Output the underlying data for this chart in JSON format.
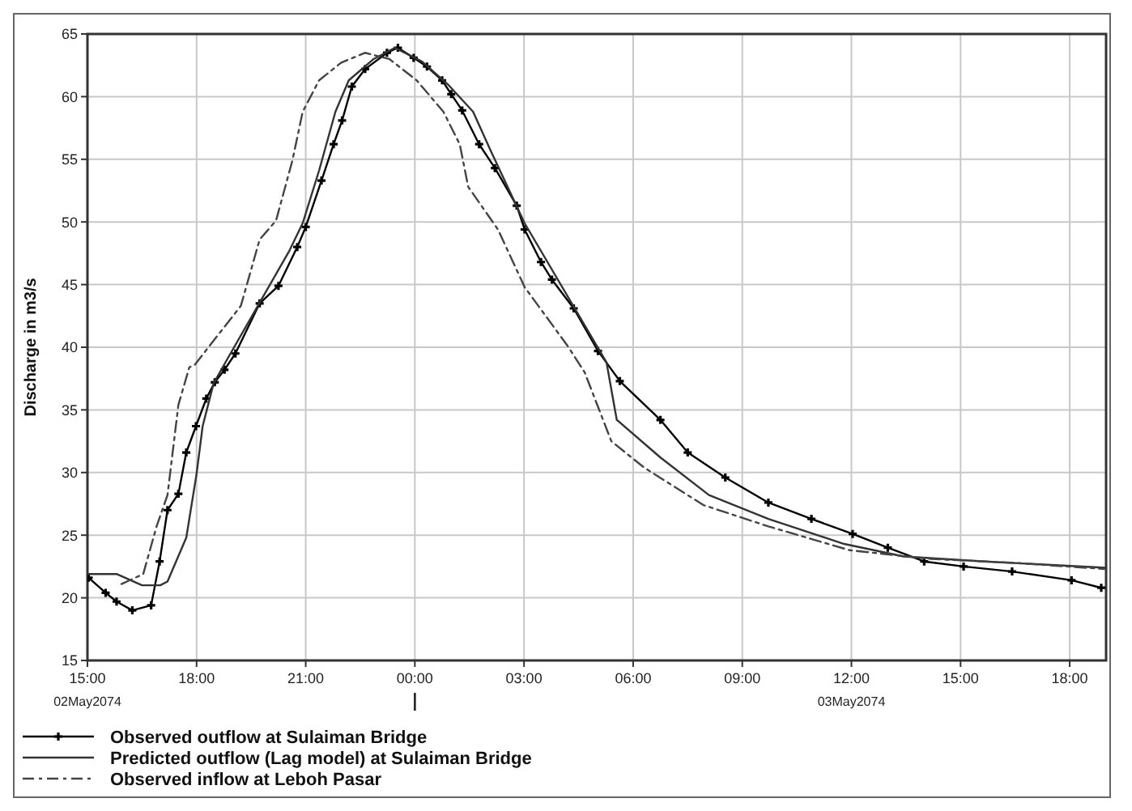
{
  "chart_data": {
    "type": "line",
    "ylabel": "Discharge in m3/s",
    "xlim": [
      "2074-05-02T15:00",
      "2074-05-03T19:00"
    ],
    "ylim": [
      15,
      65
    ],
    "xticks": [
      {
        "value": "2074-05-02T15:00",
        "label": "15:00"
      },
      {
        "value": "2074-05-02T18:00",
        "label": "18:00"
      },
      {
        "value": "2074-05-02T21:00",
        "label": "21:00"
      },
      {
        "value": "2074-05-03T00:00",
        "label": "00:00"
      },
      {
        "value": "2074-05-03T03:00",
        "label": "03:00"
      },
      {
        "value": "2074-05-03T06:00",
        "label": "06:00"
      },
      {
        "value": "2074-05-03T09:00",
        "label": "09:00"
      },
      {
        "value": "2074-05-03T12:00",
        "label": "12:00"
      },
      {
        "value": "2074-05-03T15:00",
        "label": "15:00"
      },
      {
        "value": "2074-05-03T18:00",
        "label": "18:00"
      }
    ],
    "yticks": [
      15,
      20,
      25,
      30,
      35,
      40,
      45,
      50,
      55,
      60,
      65
    ],
    "grid": true,
    "legend": "bottom left",
    "annotations": [
      "02May2074",
      "03May2074"
    ],
    "series": [
      {
        "name": "Observed outflow at Sulaiman Bridge",
        "color": "#000000",
        "marker": "cross",
        "line_style": "solid",
        "x": [
          "2074-05-02T15:02",
          "2074-05-02T15:30",
          "2074-05-02T15:48",
          "2074-05-02T16:14",
          "2074-05-02T16:45",
          "2074-05-02T16:59",
          "2074-05-02T17:12",
          "2074-05-02T17:30",
          "2074-05-02T17:43",
          "2074-05-02T17:59",
          "2074-05-02T18:16",
          "2074-05-02T18:30",
          "2074-05-02T18:46",
          "2074-05-02T19:04",
          "2074-05-02T19:44",
          "2074-05-02T20:15",
          "2074-05-02T20:46",
          "2074-05-02T21:00",
          "2074-05-02T21:26",
          "2074-05-02T21:46",
          "2074-05-02T22:00",
          "2074-05-02T22:16",
          "2074-05-02T22:38",
          "2074-05-02T23:14",
          "2074-05-02T23:32",
          "2074-05-02T23:58",
          "2074-05-03T00:20",
          "2074-05-03T00:45",
          "2074-05-03T01:00",
          "2074-05-03T01:18",
          "2074-05-03T01:46",
          "2074-05-03T02:12",
          "2074-05-03T02:48",
          "2074-05-03T03:01",
          "2074-05-03T03:28",
          "2074-05-03T03:46",
          "2074-05-03T04:22",
          "2074-05-03T05:02",
          "2074-05-03T05:38",
          "2074-05-03T06:45",
          "2074-05-03T07:30",
          "2074-05-03T08:32",
          "2074-05-03T09:43",
          "2074-05-03T10:54",
          "2074-05-03T12:02",
          "2074-05-03T13:00",
          "2074-05-03T14:00",
          "2074-05-03T15:05",
          "2074-05-03T16:25",
          "2074-05-03T18:03",
          "2074-05-03T18:52"
        ],
        "values": [
          21.6,
          20.4,
          19.7,
          19.0,
          19.4,
          22.9,
          27.0,
          28.3,
          31.6,
          33.7,
          35.9,
          37.2,
          38.2,
          39.5,
          43.5,
          44.9,
          48.0,
          49.6,
          53.3,
          56.2,
          58.1,
          60.8,
          62.2,
          63.5,
          63.9,
          63.1,
          62.4,
          61.3,
          60.2,
          58.9,
          56.2,
          54.3,
          51.3,
          49.4,
          46.8,
          45.4,
          43.1,
          39.7,
          37.3,
          34.2,
          31.6,
          29.6,
          27.6,
          26.3,
          25.1,
          24.0,
          22.9,
          22.5,
          22.1,
          21.4,
          20.8
        ]
      },
      {
        "name": "Predicted outflow (Lag model) at Sulaiman Bridge",
        "color": "#333333",
        "marker": "none",
        "line_style": "solid",
        "x": [
          "2074-05-02T15:00",
          "2074-05-02T15:48",
          "2074-05-02T16:30",
          "2074-05-02T17:00",
          "2074-05-02T17:12",
          "2074-05-02T17:43",
          "2074-05-02T18:00",
          "2074-05-02T18:10",
          "2074-05-02T18:28",
          "2074-05-02T18:50",
          "2074-05-02T20:33",
          "2074-05-02T20:55",
          "2074-05-02T21:22",
          "2074-05-02T21:49",
          "2074-05-02T22:11",
          "2074-05-02T22:52",
          "2074-05-02T23:27",
          "2074-05-03T00:12",
          "2074-05-03T00:56",
          "2074-05-03T01:36",
          "2074-05-03T02:04",
          "2074-05-03T03:01",
          "2074-05-03T05:16",
          "2074-05-03T05:33",
          "2074-05-03T06:45",
          "2074-05-03T08:05",
          "2074-05-03T09:43",
          "2074-05-03T11:48",
          "2074-05-03T13:26",
          "2074-05-03T15:40",
          "2074-05-03T19:00"
        ],
        "values": [
          21.9,
          21.9,
          21.0,
          21.0,
          21.3,
          24.8,
          29.9,
          33.7,
          37.1,
          39.0,
          47.7,
          49.9,
          54.1,
          58.8,
          61.3,
          63.0,
          63.9,
          62.8,
          60.9,
          58.8,
          55.8,
          49.9,
          38.8,
          34.2,
          31.2,
          28.2,
          26.3,
          24.3,
          23.3,
          22.9,
          22.4
        ]
      },
      {
        "name": "Observed inflow at Leboh Pasar",
        "color": "#444444",
        "marker": "none",
        "line_style": "dashed",
        "x": [
          "2074-05-02T15:56",
          "2074-05-02T16:32",
          "2074-05-02T16:54",
          "2074-05-02T17:12",
          "2074-05-02T17:30",
          "2074-05-02T17:48",
          "2074-05-02T17:57",
          "2074-05-02T19:13",
          "2074-05-02T19:44",
          "2074-05-02T20:11",
          "2074-05-02T20:38",
          "2074-05-02T20:55",
          "2074-05-02T21:22",
          "2074-05-02T21:58",
          "2074-05-02T22:38",
          "2074-05-02T23:18",
          "2074-05-03T00:03",
          "2074-05-03T00:47",
          "2074-05-03T01:14",
          "2074-05-03T01:28",
          "2074-05-03T02:17",
          "2074-05-03T03:01",
          "2074-05-03T04:12",
          "2074-05-03T04:40",
          "2074-05-03T05:24",
          "2074-05-03T06:18",
          "2074-05-03T07:56",
          "2074-05-03T09:43",
          "2074-05-03T11:57",
          "2074-05-03T14:11",
          "2074-05-03T16:25",
          "2074-05-03T18:57"
        ],
        "values": [
          21.1,
          21.9,
          25.7,
          28.2,
          35.4,
          38.4,
          38.6,
          43.3,
          48.6,
          50.1,
          54.9,
          58.8,
          61.3,
          62.7,
          63.5,
          63.0,
          61.3,
          58.8,
          56.2,
          52.8,
          49.4,
          44.8,
          40.1,
          38.0,
          32.5,
          30.4,
          27.4,
          25.7,
          23.8,
          23.1,
          22.8,
          22.3
        ]
      }
    ]
  }
}
